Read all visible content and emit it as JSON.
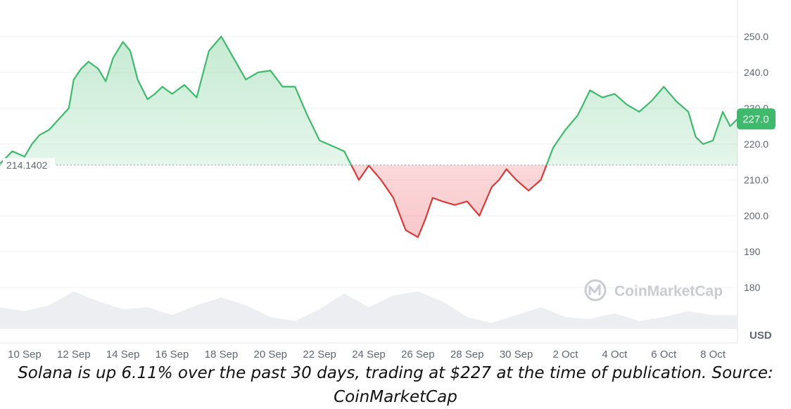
{
  "chart_data": {
    "type": "area",
    "currency_label": "USD",
    "baseline_value": 214.1402,
    "baseline_label": "214.1402",
    "current_price": 227.0,
    "current_price_label": "227.0",
    "ylim": [
      173,
      260
    ],
    "y_ticks": [
      180,
      190,
      200,
      210,
      220,
      230,
      240,
      250
    ],
    "y_tick_labels": [
      "180",
      "190",
      "200.0",
      "210.0",
      "220.0",
      "230.0",
      "240.0",
      "250.0"
    ],
    "x_tick_labels": [
      "10 Sep",
      "12 Sep",
      "14 Sep",
      "16 Sep",
      "18 Sep",
      "20 Sep",
      "22 Sep",
      "24 Sep",
      "26 Sep",
      "28 Sep",
      "30 Sep",
      "2 Oct",
      "4 Oct",
      "6 Oct",
      "8 Oct"
    ],
    "x_tick_days": [
      1,
      3,
      5,
      7,
      9,
      11,
      13,
      15,
      17,
      19,
      21,
      23,
      25,
      27,
      29
    ],
    "x_day_range": [
      0.0,
      30.0
    ],
    "series": [
      {
        "unit": "USD",
        "x_days": [
          0.0,
          0.5,
          1.0,
          1.3,
          1.6,
          2.0,
          2.4,
          2.8,
          3.0,
          3.3,
          3.6,
          4.0,
          4.3,
          4.6,
          5.0,
          5.3,
          5.6,
          6.0,
          6.3,
          6.6,
          7.0,
          7.5,
          8.0,
          8.5,
          9.0,
          9.5,
          10.0,
          10.5,
          11.0,
          11.5,
          12.0,
          12.5,
          13.0,
          13.5,
          14.0,
          14.3,
          14.6,
          15.0,
          15.5,
          16.0,
          16.5,
          17.0,
          17.3,
          17.6,
          18.0,
          18.5,
          19.0,
          19.5,
          20.0,
          20.3,
          20.6,
          21.0,
          21.5,
          22.0,
          22.5,
          23.0,
          23.5,
          24.0,
          24.5,
          25.0,
          25.5,
          26.0,
          26.5,
          27.0,
          27.5,
          28.0,
          28.3,
          28.6,
          29.0,
          29.4,
          29.7,
          30.0
        ],
        "values": [
          214.5,
          218.0,
          216.5,
          220.0,
          222.5,
          224.0,
          227.0,
          230.0,
          238.0,
          241.0,
          243.0,
          241.0,
          237.5,
          244.0,
          248.5,
          246.0,
          238.0,
          232.5,
          234.0,
          236.0,
          234.0,
          236.5,
          233.0,
          246.0,
          250.0,
          244.0,
          238.0,
          240.0,
          240.5,
          236.0,
          236.0,
          228.0,
          221.0,
          219.5,
          218.0,
          214.0,
          210.0,
          214.0,
          210.0,
          205.0,
          196.0,
          194.0,
          199.0,
          205.0,
          204.0,
          203.0,
          204.0,
          200.0,
          208.0,
          210.0,
          213.0,
          210.0,
          207.0,
          210.0,
          219.0,
          224.0,
          228.0,
          235.0,
          233.0,
          234.0,
          231.0,
          229.0,
          232.0,
          236.0,
          232.0,
          229.0,
          222.0,
          220.0,
          221.0,
          229.0,
          225.0,
          227.0
        ]
      }
    ],
    "volume": {
      "x_days": [
        0,
        1,
        2,
        3,
        4,
        5,
        6,
        7,
        8,
        9,
        10,
        11,
        12,
        13,
        14,
        15,
        16,
        17,
        18,
        19,
        20,
        21,
        22,
        23,
        24,
        25,
        26,
        27,
        28,
        29,
        30
      ],
      "values": [
        0.55,
        0.45,
        0.6,
        0.95,
        0.7,
        0.5,
        0.55,
        0.35,
        0.6,
        0.8,
        0.6,
        0.3,
        0.2,
        0.5,
        0.9,
        0.55,
        0.85,
        0.95,
        0.7,
        0.3,
        0.15,
        0.35,
        0.55,
        0.3,
        0.25,
        0.4,
        0.2,
        0.3,
        0.45,
        0.35,
        0.35
      ]
    },
    "colors": {
      "up_line": "#3fba6c",
      "down_line": "#d93a3a",
      "up_fill": "#3fba6c",
      "down_fill": "#ea3943",
      "price_badge": "#3fba6c",
      "volume_fill": "#eceef2",
      "grid": "#eef0f3"
    }
  },
  "watermark": {
    "text": "CoinMarketCap",
    "icon": "coinmarketcap-logo-icon"
  },
  "caption": {
    "line1": "Solana is up 6.11% over the past 30 days, trading at $227 at the time of publication. Source:",
    "line2": "CoinMarketCap"
  }
}
